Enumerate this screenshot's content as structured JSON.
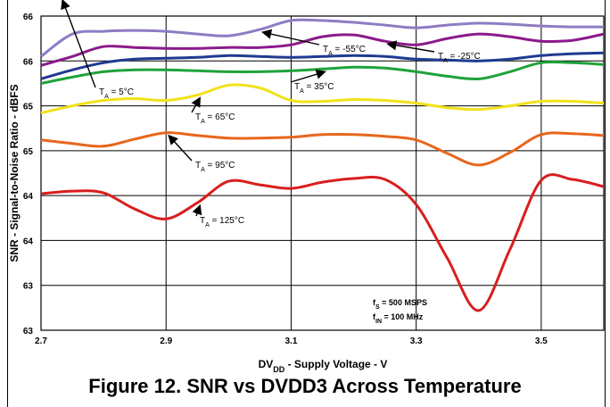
{
  "figure_caption": "Figure 12. SNR vs DVDD3 Across Temperature",
  "chart_data": {
    "type": "line",
    "title": "",
    "xlabel": "DV",
    "xlabel_sub": "DD",
    "xlabel_tail": " - Supply Voltage - V",
    "ylabel": "SNR - Signal-to-Noise Ratio - dBFS",
    "xlim": [
      2.7,
      3.6
    ],
    "ylim": [
      63,
      66.5
    ],
    "x_ticks": [
      "2.7",
      "2.9",
      "3.1",
      "3.3",
      "3.5"
    ],
    "y_ticks": [
      "63",
      "63",
      "64",
      "64",
      "65",
      "65",
      "66",
      "66"
    ],
    "grid": true,
    "conditions": [
      {
        "main": "f",
        "sub": "S",
        "tail": " = 500 MSPS"
      },
      {
        "main": "f",
        "sub": "IN",
        "tail": " = 100 MHz"
      }
    ],
    "series": [
      {
        "name": "T_A = -55°C",
        "label_main": "T",
        "label_sub": "A",
        "label_tail": " = -55°C",
        "color": "#8e7cc3",
        "x": [
          2.7,
          2.75,
          2.8,
          2.85,
          2.9,
          2.95,
          3.0,
          3.05,
          3.1,
          3.15,
          3.2,
          3.25,
          3.3,
          3.35,
          3.4,
          3.45,
          3.5,
          3.55,
          3.6
        ],
        "y": [
          66.05,
          66.3,
          66.33,
          66.34,
          66.33,
          66.3,
          66.28,
          66.35,
          66.45,
          66.45,
          66.43,
          66.4,
          66.37,
          66.4,
          66.42,
          66.41,
          66.39,
          66.38,
          66.38
        ]
      },
      {
        "name": "T_A = -25°C",
        "label_main": "T",
        "label_sub": "A",
        "label_tail": " = -25°C",
        "color": "#8b1a8b",
        "x": [
          2.7,
          2.75,
          2.8,
          2.85,
          2.9,
          2.95,
          3.0,
          3.05,
          3.1,
          3.15,
          3.2,
          3.25,
          3.3,
          3.35,
          3.4,
          3.45,
          3.5,
          3.55,
          3.6
        ],
        "y": [
          65.95,
          66.05,
          66.16,
          66.15,
          66.14,
          66.14,
          66.15,
          66.15,
          66.18,
          66.27,
          66.29,
          66.22,
          66.18,
          66.25,
          66.3,
          66.27,
          66.22,
          66.23,
          66.3
        ]
      },
      {
        "name": "T_A = 5°C",
        "label_main": "T",
        "label_sub": "A",
        "label_tail": " = 5°C",
        "color": "#1f3a93",
        "x": [
          2.7,
          2.75,
          2.8,
          2.85,
          2.9,
          2.95,
          3.0,
          3.05,
          3.1,
          3.15,
          3.2,
          3.25,
          3.3,
          3.35,
          3.4,
          3.45,
          3.5,
          3.55,
          3.6
        ],
        "y": [
          65.8,
          65.9,
          65.98,
          66.02,
          66.03,
          66.04,
          66.06,
          66.05,
          66.04,
          66.05,
          66.06,
          66.05,
          66.02,
          66.01,
          66.0,
          66.02,
          66.06,
          66.08,
          66.09
        ]
      },
      {
        "name": "T_A = 35°C",
        "label_main": "T",
        "label_sub": "A",
        "label_tail": " = 35°C",
        "color": "#1ea33a",
        "x": [
          2.7,
          2.75,
          2.8,
          2.85,
          2.9,
          2.95,
          3.0,
          3.05,
          3.1,
          3.15,
          3.2,
          3.25,
          3.3,
          3.35,
          3.4,
          3.45,
          3.5,
          3.55,
          3.6
        ],
        "y": [
          65.75,
          65.82,
          65.88,
          65.9,
          65.9,
          65.89,
          65.88,
          65.88,
          65.89,
          65.91,
          65.93,
          65.92,
          65.88,
          65.83,
          65.8,
          65.88,
          65.98,
          65.98,
          65.96
        ]
      },
      {
        "name": "T_A = 65°C",
        "label_main": "T",
        "label_sub": "A",
        "label_tail": " = 65°C",
        "color": "#f2e21a",
        "x": [
          2.7,
          2.75,
          2.8,
          2.85,
          2.9,
          2.95,
          3.0,
          3.05,
          3.1,
          3.15,
          3.2,
          3.25,
          3.3,
          3.35,
          3.4,
          3.45,
          3.5,
          3.55,
          3.6
        ],
        "y": [
          65.42,
          65.5,
          65.56,
          65.58,
          65.56,
          65.62,
          65.73,
          65.7,
          65.56,
          65.55,
          65.57,
          65.56,
          65.53,
          65.48,
          65.46,
          65.5,
          65.55,
          65.55,
          65.53
        ]
      },
      {
        "name": "T_A = 95°C",
        "label_main": "T",
        "label_sub": "A",
        "label_tail": " = 95°C",
        "color": "#e8661c",
        "x": [
          2.7,
          2.75,
          2.8,
          2.85,
          2.9,
          2.95,
          3.0,
          3.05,
          3.1,
          3.15,
          3.2,
          3.25,
          3.3,
          3.35,
          3.4,
          3.45,
          3.5,
          3.55,
          3.6
        ],
        "y": [
          65.12,
          65.08,
          65.05,
          65.13,
          65.2,
          65.17,
          65.14,
          65.14,
          65.15,
          65.18,
          65.18,
          65.16,
          65.12,
          64.97,
          64.84,
          64.98,
          65.18,
          65.19,
          65.17
        ]
      },
      {
        "name": "T_A = 125°C",
        "label_main": "T",
        "label_sub": "A",
        "label_tail": " = 125°C",
        "color": "#d91e1e",
        "x": [
          2.7,
          2.75,
          2.8,
          2.85,
          2.9,
          2.95,
          3.0,
          3.05,
          3.1,
          3.15,
          3.2,
          3.25,
          3.3,
          3.35,
          3.4,
          3.45,
          3.5,
          3.55,
          3.6
        ],
        "y": [
          64.52,
          64.55,
          64.53,
          64.35,
          64.24,
          64.42,
          64.66,
          64.62,
          64.58,
          64.65,
          64.69,
          64.68,
          64.4,
          63.8,
          63.22,
          63.9,
          64.67,
          64.68,
          64.6
        ]
      }
    ]
  }
}
